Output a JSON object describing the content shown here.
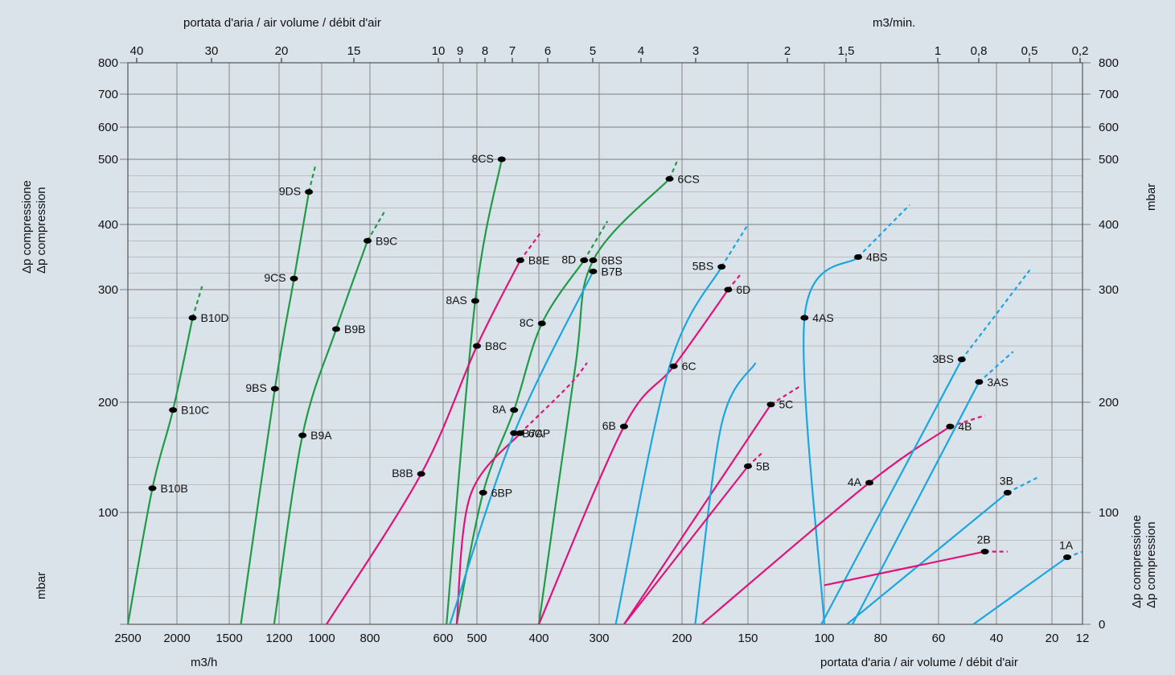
{
  "chart_data": {
    "type": "line",
    "colors": {
      "green": "#1f9a46",
      "magenta": "#e0137a",
      "cyan": "#1aa6df",
      "grid": "#7d7d7d",
      "background": "#dbe3ea"
    },
    "axes": {
      "top_title": "portata d'aria / air volume / débit d'air",
      "top_right_unit": "m3/min.",
      "bottom_left_unit": "m3/h",
      "bottom_right_title": "portata d'aria / air volume / débit d'air",
      "left_title_line1": "Δp compressione",
      "left_title_line2": "Δp compression",
      "left_unit": "mbar",
      "right_unit": "mbar",
      "right_title_line1": "Δp compressione",
      "right_title_line2": "Δp compression",
      "y_ticks_left": [
        "800",
        "700",
        "600",
        "500",
        "400",
        "300",
        "200",
        "100"
      ],
      "y_ticks_right": [
        "800",
        "700",
        "600",
        "500",
        "400",
        "300",
        "200",
        "100",
        "0"
      ],
      "x_ticks_bottom": [
        "2500",
        "2000",
        "1500",
        "1200",
        "1000",
        "800",
        "600",
        "500",
        "400",
        "300",
        "200",
        "150",
        "100",
        "80",
        "60",
        "40",
        "20",
        "12"
      ],
      "x_ticks_top": [
        "40",
        "30",
        "20",
        "15",
        "10",
        "9",
        "8",
        "7",
        "6",
        "5",
        "4",
        "3",
        "2",
        "1,5",
        "1",
        "0,8",
        "0,5",
        "0,2"
      ]
    },
    "series": [
      {
        "name": "B10",
        "color": "green",
        "points": [
          [
            2500,
            0
          ],
          [
            2250,
            122
          ],
          [
            2040,
            193
          ],
          [
            1850,
            275
          ],
          [
            1760,
            305,
            "d"
          ]
        ],
        "labels": [
          {
            "t": "B10B",
            "x": 2250,
            "y": 122
          },
          {
            "t": "B10C",
            "x": 2040,
            "y": 193
          },
          {
            "t": "B10D",
            "x": 1850,
            "y": 275
          }
        ]
      },
      {
        "name": "9",
        "color": "green",
        "points": [
          [
            1430,
            0
          ],
          [
            1225,
            212
          ],
          [
            1130,
            317
          ],
          [
            1060,
            450
          ],
          [
            1030,
            490,
            "d"
          ]
        ],
        "labels": [
          {
            "t": "9BS",
            "x": 1225,
            "y": 212
          },
          {
            "t": "9CS",
            "x": 1130,
            "y": 317
          },
          {
            "t": "9DS",
            "x": 1060,
            "y": 450
          }
        ]
      },
      {
        "name": "B9",
        "color": "green",
        "points": [
          [
            1230,
            0
          ],
          [
            1090,
            170
          ],
          [
            940,
            265
          ],
          [
            810,
            375
          ],
          [
            760,
            420,
            "d"
          ]
        ],
        "labels": [
          {
            "t": "B9A",
            "x": 1090,
            "y": 170
          },
          {
            "t": "B9B",
            "x": 940,
            "y": 265
          },
          {
            "t": "B9C",
            "x": 810,
            "y": 375
          }
        ]
      },
      {
        "name": "8",
        "color": "green",
        "points": [
          [
            590,
            0
          ],
          [
            505,
            290
          ],
          [
            460,
            500
          ]
        ],
        "labels": [
          {
            "t": "8AS",
            "x": 505,
            "y": 290
          },
          {
            "t": "8CS",
            "x": 460,
            "y": 500
          }
        ]
      },
      {
        "name": "8AB",
        "color": "green",
        "points": [
          [
            560,
            0
          ],
          [
            490,
            118
          ],
          [
            440,
            193
          ],
          [
            395,
            270
          ],
          [
            325,
            345
          ],
          [
            290,
            405,
            "d"
          ]
        ],
        "labels": [
          {
            "t": "6BP",
            "x": 490,
            "y": 118
          },
          {
            "t": "8A",
            "x": 440,
            "y": 193
          },
          {
            "t": "8C",
            "x": 395,
            "y": 270
          },
          {
            "t": "8D",
            "x": 325,
            "y": 345
          }
        ]
      },
      {
        "name": "6B",
        "color": "green",
        "points": [
          [
            400,
            0
          ],
          [
            340,
            230
          ],
          [
            310,
            345
          ],
          [
            215,
            470
          ],
          [
            205,
            500,
            "d"
          ]
        ],
        "labels": [
          {
            "t": "6BS",
            "x": 310,
            "y": 345
          },
          {
            "t": "6CS",
            "x": 215,
            "y": 470
          }
        ]
      },
      {
        "name": "B8",
        "color": "magenta",
        "points": [
          [
            980,
            0
          ],
          [
            660,
            135
          ],
          [
            500,
            250
          ],
          [
            430,
            345
          ],
          [
            395,
            390,
            "d"
          ]
        ],
        "labels": [
          {
            "t": "B8B",
            "x": 660,
            "y": 135
          },
          {
            "t": "B8C",
            "x": 500,
            "y": 250
          },
          {
            "t": "B8E",
            "x": 430,
            "y": 345
          }
        ]
      },
      {
        "name": "6CP",
        "color": "magenta",
        "points": [
          [
            560,
            0
          ],
          [
            520,
            115
          ],
          [
            430,
            172
          ],
          [
            350,
            215,
            "d"
          ],
          [
            320,
            235,
            "d"
          ]
        ],
        "labels": [
          {
            "t": "6CP",
            "x": 430,
            "y": 172
          }
        ]
      },
      {
        "name": "B7",
        "color": "cyan",
        "points": [
          [
            580,
            0
          ],
          [
            440,
            172
          ],
          [
            310,
            328
          ]
        ],
        "labels": [
          {
            "t": "B7A",
            "x": 440,
            "y": 172
          },
          {
            "t": "B7B",
            "x": 310,
            "y": 328
          }
        ]
      },
      {
        "name": "6x",
        "color": "magenta",
        "points": [
          [
            400,
            0
          ],
          [
            270,
            178
          ],
          [
            210,
            232
          ],
          [
            165,
            300
          ],
          [
            155,
            325,
            "d"
          ]
        ],
        "labels": [
          {
            "t": "6B",
            "x": 270,
            "y": 178
          },
          {
            "t": "6C",
            "x": 210,
            "y": 232
          },
          {
            "t": "6D",
            "x": 165,
            "y": 300
          }
        ]
      },
      {
        "name": "5BS",
        "color": "cyan",
        "points": [
          [
            280,
            0
          ],
          [
            215,
            232
          ],
          [
            170,
            335
          ],
          [
            150,
            400,
            "d"
          ]
        ],
        "labels": [
          {
            "t": "5BS",
            "x": 170,
            "y": 335
          }
        ]
      },
      {
        "name": "5C",
        "color": "magenta",
        "points": [
          [
            270,
            0
          ],
          [
            135,
            198
          ],
          [
            115,
            215,
            "d"
          ]
        ],
        "labels": [
          {
            "t": "5C",
            "x": 135,
            "y": 198
          }
        ]
      },
      {
        "name": "6CSb",
        "color": "cyan",
        "points": [
          [
            190,
            0
          ],
          [
            170,
            180
          ],
          [
            145,
            235
          ]
        ],
        "labels": []
      },
      {
        "name": "5B",
        "color": "magenta",
        "points": [
          [
            270,
            0
          ],
          [
            150,
            142
          ],
          [
            140,
            155,
            "d"
          ]
        ],
        "labels": [
          {
            "t": "5B",
            "x": 150,
            "y": 142
          }
        ]
      },
      {
        "name": "4",
        "color": "cyan",
        "points": [
          [
            100,
            0
          ],
          [
            113,
            275
          ],
          [
            88,
            350
          ],
          [
            70,
            430,
            "d"
          ]
        ],
        "labels": [
          {
            "t": "4AS",
            "x": 113,
            "y": 275
          },
          {
            "t": "4BS",
            "x": 88,
            "y": 350
          }
        ]
      },
      {
        "name": "4AB",
        "color": "magenta",
        "points": [
          [
            185,
            0
          ],
          [
            84,
            127
          ],
          [
            56,
            178
          ],
          [
            44,
            188,
            "d"
          ]
        ],
        "labels": [
          {
            "t": "4A",
            "x": 84,
            "y": 127
          },
          {
            "t": "4B",
            "x": 56,
            "y": 178
          }
        ]
      },
      {
        "name": "3BS",
        "color": "cyan",
        "points": [
          [
            102,
            0
          ],
          [
            52,
            238
          ],
          [
            28,
            330,
            "d"
          ]
        ],
        "labels": [
          {
            "t": "3BS",
            "x": 52,
            "y": 238
          }
        ]
      },
      {
        "name": "3AS",
        "color": "cyan",
        "points": [
          [
            90,
            0
          ],
          [
            46,
            218
          ],
          [
            34,
            245,
            "d"
          ]
        ],
        "labels": [
          {
            "t": "3AS",
            "x": 46,
            "y": 218
          }
        ]
      },
      {
        "name": "3B",
        "color": "cyan",
        "points": [
          [
            92,
            0
          ],
          [
            36,
            118
          ],
          [
            25,
            132,
            "d"
          ]
        ],
        "labels": [
          {
            "t": "3B",
            "x": 36,
            "y": 118
          }
        ]
      },
      {
        "name": "2B",
        "color": "magenta",
        "points": [
          [
            100,
            35
          ],
          [
            44,
            65
          ],
          [
            36,
            65,
            "d"
          ]
        ],
        "labels": [
          {
            "t": "2B",
            "x": 44,
            "y": 65
          }
        ]
      },
      {
        "name": "1A",
        "color": "cyan",
        "points": [
          [
            48,
            0
          ],
          [
            16,
            60
          ],
          [
            12,
            65,
            "d"
          ]
        ],
        "labels": [
          {
            "t": "1A",
            "x": 16,
            "y": 60
          }
        ]
      }
    ]
  }
}
